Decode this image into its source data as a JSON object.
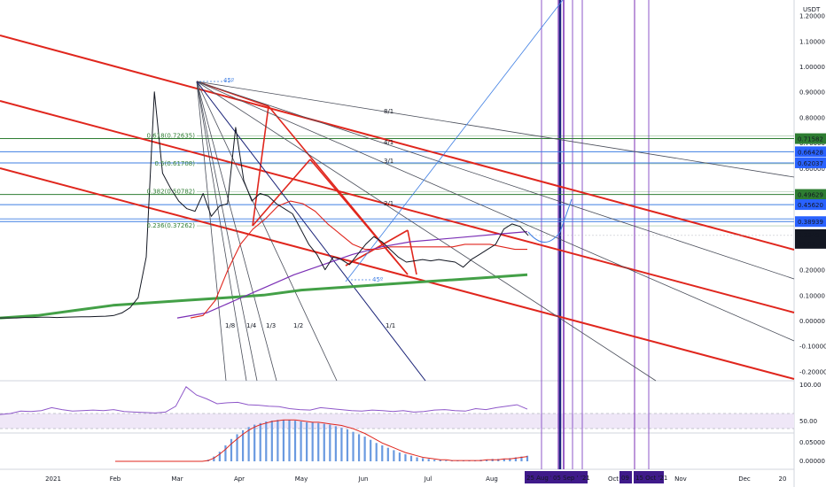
{
  "colors": {
    "red": "#e0261d",
    "blue": "#3f7fe3",
    "purple": "#7b2fb5",
    "green": "#43a047",
    "darkgreen": "#2e7d32",
    "navy": "#1a237e",
    "gray": "#b2b5be",
    "dark": "#131722",
    "rsi": "#8e57c9",
    "histogram": "#6a9ae0"
  },
  "chart_data": [
    {
      "type": "line",
      "title": "",
      "currency": "USDT",
      "y_ticks": [
        "1.20000",
        "1.10000",
        "1.00000",
        "0.90000",
        "0.80000",
        "0.70000",
        "0.60000",
        "0.50000",
        "0.40000",
        "0.30000",
        "0.20000",
        "0.10000",
        "0.00000",
        "-0.10000",
        "-0.20000"
      ],
      "x_ticks": [
        "2021",
        "Feb",
        "Mar",
        "Apr",
        "May",
        "Jun",
        "Jul",
        "Aug",
        "Oct",
        "Nov",
        "Dec",
        "20"
      ],
      "date_labels": [
        "25 Aug '21",
        "05 Sep '21",
        "'21",
        "09 ",
        "15 Oct '21"
      ],
      "price_levels": [
        {
          "label": "0.71582",
          "value": 0.71582
        },
        {
          "label": "0.66428",
          "value": 0.66428
        },
        {
          "label": "0.62037",
          "value": 0.62037
        },
        {
          "label": "0.49629",
          "value": 0.49629
        },
        {
          "label": "0.45620",
          "value": 0.4562
        },
        {
          "label": "0.38939",
          "value": 0.38939
        }
      ],
      "current_price": {
        "label": "0.33497",
        "value": 0.33497,
        "countdown": "09:08:44"
      },
      "fib_levels": [
        {
          "label": "0.618(0.72635)",
          "value": 0.72635
        },
        {
          "label": "0.5(0.61708)",
          "value": 0.61708
        },
        {
          "label": "0.382(0.50782)",
          "value": 0.50782
        },
        {
          "label": "0.236(0.37262)",
          "value": 0.37262
        }
      ],
      "fan_labels": [
        "1/8",
        "1/4",
        "1/3",
        "1/2",
        "1/1",
        "2/1",
        "3/1",
        "4/1",
        "8/1"
      ],
      "angle_labels": [
        "45º",
        "45º"
      ],
      "series": [
        {
          "name": "",
          "values": [
            0.01,
            0.01,
            0.01,
            0.012,
            0.012,
            0.013,
            0.013,
            0.012,
            0.013,
            0.014,
            0.015,
            0.015,
            0.016,
            0.017,
            0.02,
            0.03,
            0.05,
            0.09,
            0.25,
            0.9,
            0.58,
            0.52,
            0.47,
            0.44,
            0.43,
            0.5,
            0.41,
            0.45,
            0.46,
            0.76,
            0.55,
            0.47,
            0.5,
            0.49,
            0.46,
            0.44,
            0.42,
            0.36,
            0.3,
            0.26,
            0.2,
            0.25,
            0.24,
            0.22,
            0.26,
            0.3,
            0.33,
            0.31,
            0.28,
            0.25,
            0.23,
            0.235,
            0.24,
            0.235,
            0.24,
            0.235,
            0.23,
            0.21,
            0.24,
            0.26,
            0.28,
            0.3,
            0.36,
            0.38,
            0.37,
            0.335
          ]
        },
        {
          "name": "",
          "values": [
            0.01,
            0.02,
            0.08,
            0.2,
            0.3,
            0.36,
            0.4,
            0.45,
            0.47,
            0.46,
            0.43,
            0.38,
            0.34,
            0.3,
            0.28,
            0.28,
            0.29,
            0.29,
            0.29,
            0.29,
            0.29,
            0.29,
            0.3,
            0.3,
            0.3,
            0.29,
            0.28,
            0.28
          ]
        },
        {
          "name": "",
          "values": [
            0.01,
            0.03,
            0.08,
            0.13,
            0.18,
            0.22,
            0.26,
            0.29,
            0.31,
            0.32,
            0.33,
            0.34,
            0.35
          ]
        },
        {
          "name": "",
          "values": [
            0.01,
            0.02,
            0.04,
            0.06,
            0.07,
            0.08,
            0.09,
            0.1,
            0.12,
            0.13,
            0.14,
            0.15,
            0.16,
            0.17,
            0.18
          ]
        }
      ]
    },
    {
      "type": "line",
      "title": "",
      "y_ticks": [
        "100.00",
        "50.00"
      ],
      "band": [
        30,
        70
      ],
      "series": [
        {
          "name": "",
          "values": [
            38,
            40,
            45,
            44,
            46,
            52,
            48,
            45,
            46,
            47,
            46,
            48,
            44,
            43,
            42,
            41,
            43,
            55,
            95,
            78,
            70,
            60,
            62,
            63,
            58,
            57,
            55,
            54,
            50,
            48,
            47,
            52,
            50,
            48,
            46,
            45,
            47,
            46,
            44,
            46,
            43,
            44,
            47,
            48,
            46,
            45,
            50,
            48,
            52,
            55,
            58,
            49
          ]
        }
      ]
    },
    {
      "type": "bar",
      "title": "",
      "y_ticks": [
        "0.05000",
        "0.00000"
      ],
      "values": [
        0,
        0,
        0,
        0,
        0,
        0,
        0,
        0,
        0,
        0,
        0,
        0,
        0,
        0,
        0,
        0,
        0.002,
        0.006,
        0.012,
        0.02,
        0.028,
        0.034,
        0.039,
        0.043,
        0.046,
        0.048,
        0.05,
        0.051,
        0.052,
        0.052,
        0.052,
        0.051,
        0.05,
        0.049,
        0.049,
        0.048,
        0.047,
        0.046,
        0.044,
        0.042,
        0.04,
        0.037,
        0.034,
        0.031,
        0.027,
        0.023,
        0.02,
        0.017,
        0.014,
        0.011,
        0.009,
        0.007,
        0.005,
        0.004,
        0.003,
        0.002,
        0.002,
        0.001,
        0.001,
        0.001,
        0.001,
        0.001,
        0.001,
        0.002,
        0.002,
        0.003,
        0.003,
        0.003,
        0.004,
        0.005,
        0.006,
        0.007
      ],
      "signal": [
        0,
        0,
        0,
        0,
        0,
        0,
        0,
        0,
        0,
        0,
        0,
        0,
        0,
        0,
        0,
        0,
        0.001,
        0.004,
        0.009,
        0.015,
        0.022,
        0.028,
        0.034,
        0.039,
        0.043,
        0.046,
        0.048,
        0.05,
        0.051,
        0.052,
        0.052,
        0.052,
        0.051,
        0.05,
        0.049,
        0.049,
        0.048,
        0.047,
        0.046,
        0.045,
        0.043,
        0.041,
        0.038,
        0.035,
        0.031,
        0.027,
        0.023,
        0.02,
        0.017,
        0.014,
        0.011,
        0.009,
        0.007,
        0.005,
        0.004,
        0.003,
        0.002,
        0.002,
        0.001,
        0.001,
        0.001,
        0.001,
        0.001,
        0.001,
        0.002,
        0.002,
        0.002,
        0.003,
        0.003,
        0.004,
        0.005,
        0.006
      ]
    }
  ]
}
